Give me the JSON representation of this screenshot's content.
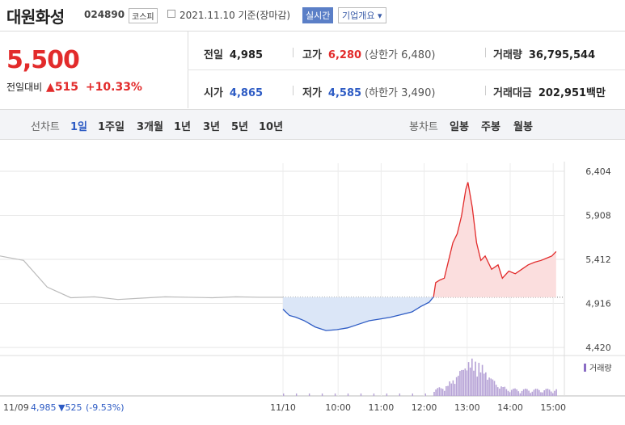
{
  "header": {
    "name": "대원화성",
    "code": "024890",
    "market": "코스피",
    "date": "2021.11.10 기준(장마감)",
    "realtime": "실시간",
    "company_info": "기업개요 ▾"
  },
  "quote": {
    "price": "5,500",
    "change_label": "전일대비",
    "change": "▲515",
    "change_pct": "+10.33%"
  },
  "stats": {
    "prev_label": "전일",
    "prev": "4,985",
    "high_label": "고가",
    "high": "6,280",
    "upper_limit": "(상한가 6,480)",
    "volume_label": "거래량",
    "volume": "36,795,544",
    "open_label": "시가",
    "open": "4,865",
    "low_label": "저가",
    "low": "4,585",
    "lower_limit": "(하한가 3,490)",
    "amount_label": "거래대금",
    "amount": "202,951백만"
  },
  "tabs": {
    "line_label": "선차트",
    "line_tabs": [
      "1일",
      "1주일",
      "3개월",
      "1년",
      "3년",
      "5년",
      "10년"
    ],
    "active": "1일",
    "candle_label": "봉차트",
    "candle_tabs": [
      "일봉",
      "주봉",
      "월봉"
    ]
  },
  "colors": {
    "up": "#e22b2b",
    "down": "#2d5bc4",
    "prev_line": "#bbbbbb"
  },
  "chart_data": {
    "type": "line",
    "title": "",
    "prev_close": 4985,
    "yticks": [
      6404,
      5908,
      5412,
      4916,
      4420
    ],
    "ylim": [
      4420,
      6404
    ],
    "xticks": [
      "11/10",
      "10:00",
      "11:00",
      "12:00",
      "13:00",
      "14:00",
      "15:00"
    ],
    "prev_day_label": "11/09",
    "prev_day_close": "4,985",
    "prev_day_change": "▼525",
    "prev_day_pct": "(-9.53%)",
    "volume_label": "거래량",
    "series": [
      {
        "day": "11/09",
        "x": [
          0,
          0.5,
          1,
          1.5,
          2,
          2.5,
          3,
          3.5,
          4,
          4.5,
          5,
          5.5,
          6
        ],
        "values": [
          5450,
          5400,
          5100,
          4980,
          4990,
          4960,
          4975,
          4990,
          4985,
          4980,
          4990,
          4985,
          4985
        ]
      },
      {
        "day": "11/10",
        "x": [
          9.0,
          9.15,
          9.3,
          9.5,
          9.75,
          10.0,
          10.25,
          10.5,
          10.75,
          11.0,
          11.25,
          11.5,
          11.75,
          12.0,
          12.2,
          12.4,
          12.5,
          12.55,
          12.65,
          12.75,
          12.85,
          12.95,
          13.05,
          13.15,
          13.25,
          13.3,
          13.4,
          13.5,
          13.6,
          13.7,
          13.85,
          14.0,
          14.1,
          14.25,
          14.4,
          14.55,
          14.7,
          14.85,
          15.0,
          15.1,
          15.25,
          15.35
        ],
        "values": [
          4850,
          4780,
          4760,
          4720,
          4650,
          4610,
          4620,
          4640,
          4680,
          4720,
          4740,
          4760,
          4790,
          4820,
          4880,
          4930,
          4990,
          5150,
          5180,
          5200,
          5400,
          5600,
          5700,
          5900,
          6200,
          6280,
          6000,
          5600,
          5400,
          5450,
          5300,
          5350,
          5200,
          5280,
          5250,
          5300,
          5350,
          5380,
          5400,
          5420,
          5450,
          5500
        ]
      }
    ]
  }
}
